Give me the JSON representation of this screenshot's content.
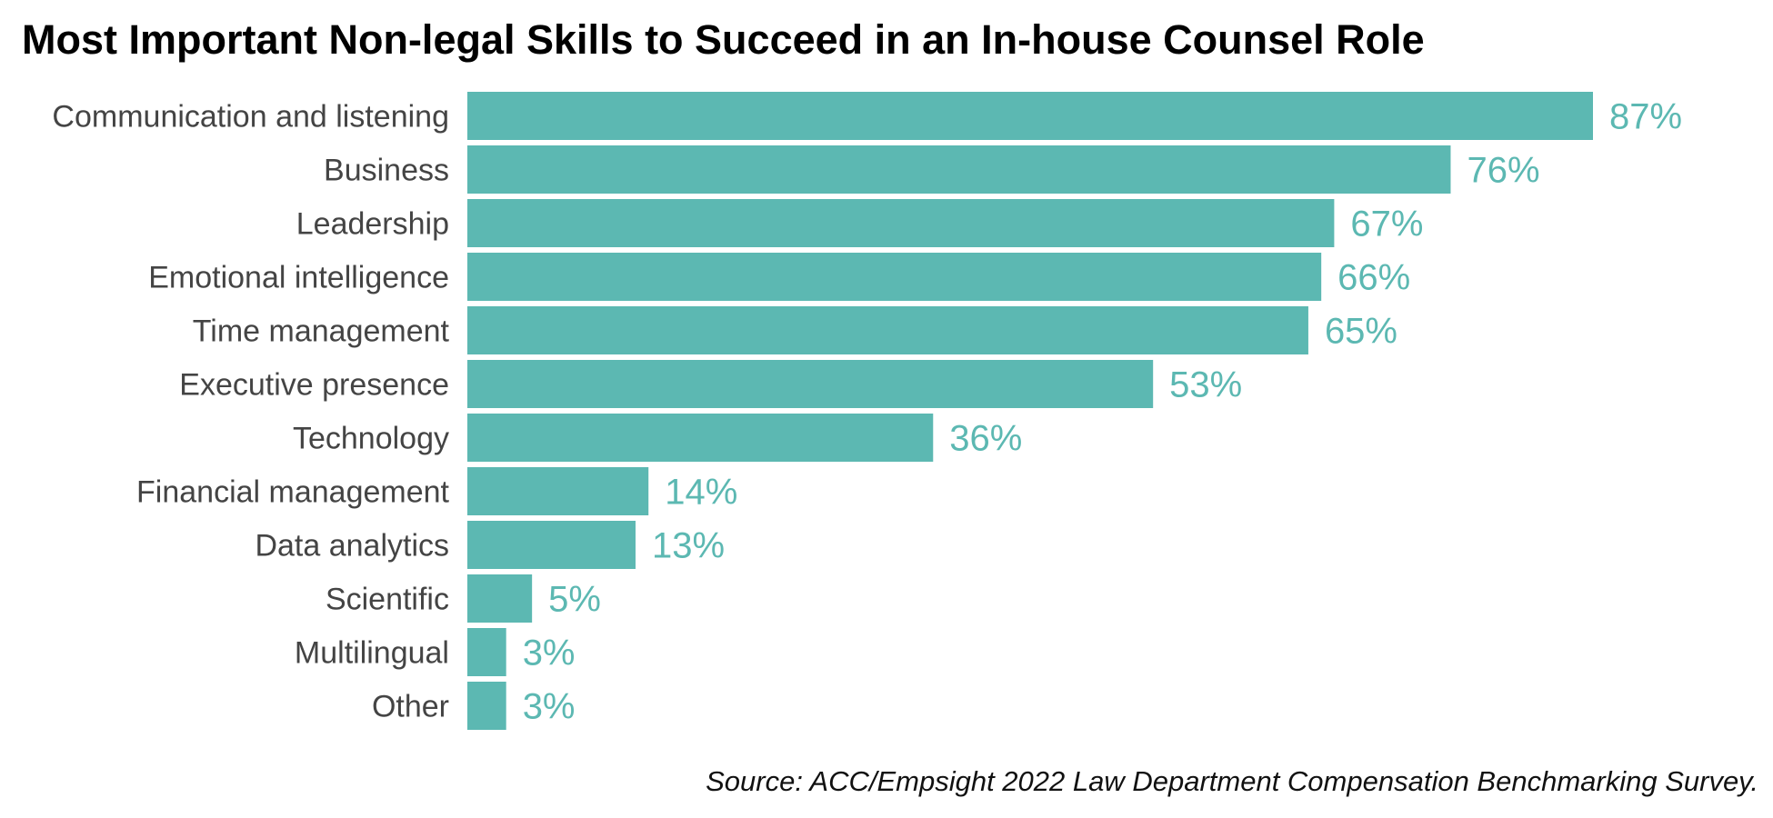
{
  "chart_data": {
    "type": "bar",
    "orientation": "horizontal",
    "title": "Most Important Non-legal Skills to Succeed in an In-house Counsel Role",
    "categories": [
      "Communication and listening",
      "Business",
      "Leadership",
      "Emotional intelligence",
      "Time management",
      "Executive presence",
      "Technology",
      "Financial management",
      "Data analytics",
      "Scientific",
      "Multilingual",
      "Other"
    ],
    "values": [
      87,
      76,
      67,
      66,
      65,
      53,
      36,
      14,
      13,
      5,
      3,
      3
    ],
    "value_labels": [
      "87%",
      "76%",
      "67%",
      "66%",
      "65%",
      "53%",
      "36%",
      "14%",
      "13%",
      "5%",
      "3%",
      "3%"
    ],
    "xlim": [
      0,
      100
    ],
    "grid": false,
    "bar_color": "#5cb8b2",
    "label_color": "#5cb8b2",
    "source": "Source: ACC/Empsight 2022 Law Department Compensation Benchmarking Survey."
  }
}
